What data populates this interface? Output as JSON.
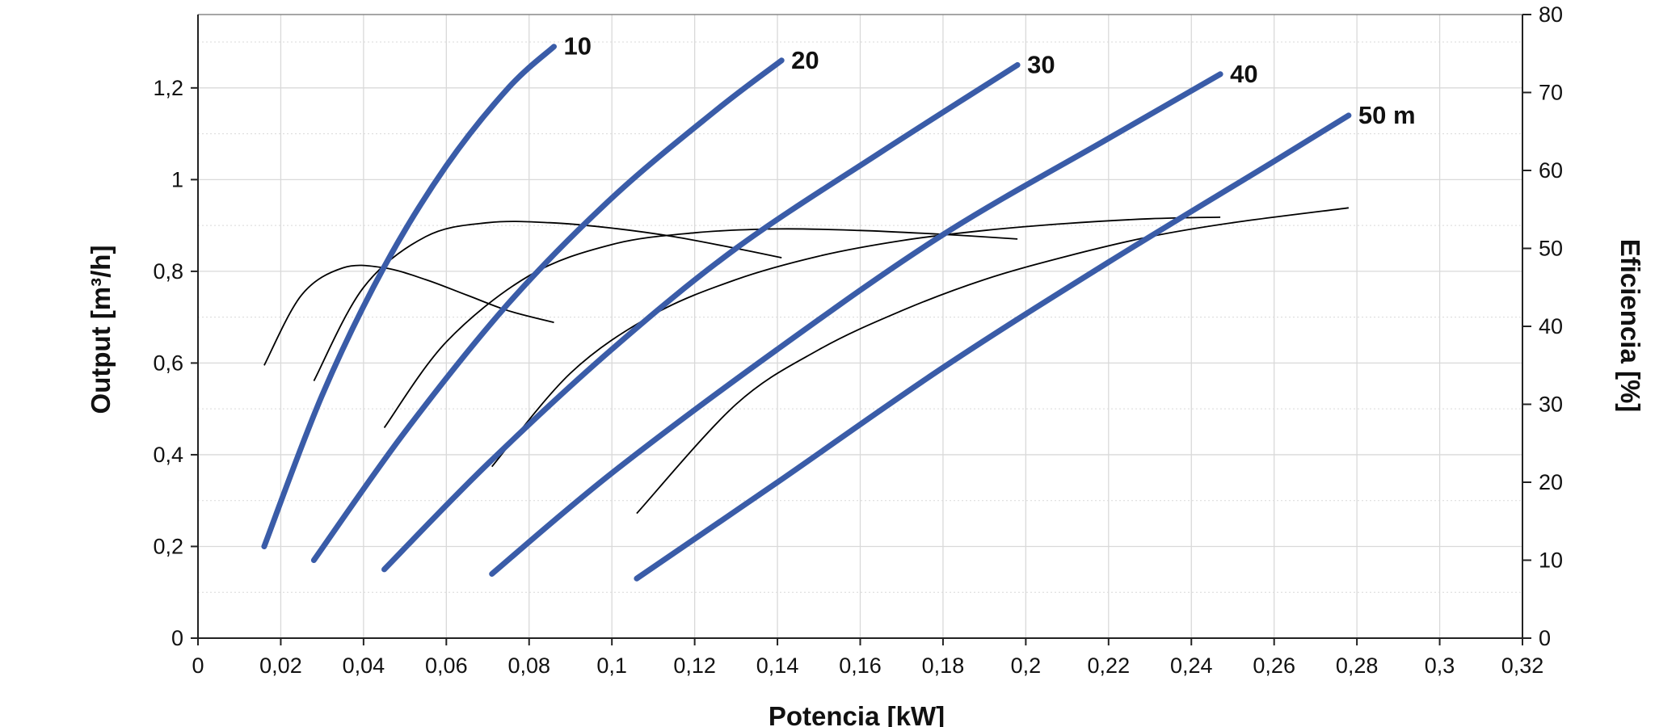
{
  "chart_data": {
    "type": "line",
    "xlabel": "Potencia [kW]",
    "ylabel_left": "Output [m³/h]",
    "ylabel_right": "Eficiencia [%]",
    "xlim": [
      0,
      0.32
    ],
    "ylim_left": [
      0,
      1.36
    ],
    "ylim_right": [
      0,
      80
    ],
    "x_ticks": [
      "0",
      "0,02",
      "0,04",
      "0,06",
      "0,08",
      "0,1",
      "0,12",
      "0,14",
      "0,16",
      "0,18",
      "0,2",
      "0,22",
      "0,24",
      "0,26",
      "0,28",
      "0,3",
      "0,32"
    ],
    "y_left_ticks": [
      "0",
      "0,2",
      "0,4",
      "0,6",
      "0,8",
      "1",
      "1,2"
    ],
    "y_right_ticks": [
      "0",
      "10",
      "20",
      "30",
      "40",
      "50",
      "60",
      "70",
      "80"
    ],
    "grid": true,
    "colors": {
      "output": "#3a5ca8",
      "efficiency": "#000000",
      "grid": "#d9d9d9"
    },
    "output_series": [
      {
        "label": "10",
        "axis": "left",
        "x": [
          0.016,
          0.03,
          0.045,
          0.06,
          0.075,
          0.086
        ],
        "y": [
          0.2,
          0.53,
          0.81,
          1.03,
          1.2,
          1.29
        ]
      },
      {
        "label": "20",
        "axis": "left",
        "x": [
          0.028,
          0.05,
          0.075,
          0.1,
          0.125,
          0.141
        ],
        "y": [
          0.17,
          0.45,
          0.73,
          0.96,
          1.15,
          1.26
        ]
      },
      {
        "label": "30",
        "axis": "left",
        "x": [
          0.045,
          0.07,
          0.1,
          0.13,
          0.165,
          0.198
        ],
        "y": [
          0.15,
          0.38,
          0.63,
          0.85,
          1.06,
          1.25
        ]
      },
      {
        "label": "40",
        "axis": "left",
        "x": [
          0.071,
          0.1,
          0.14,
          0.18,
          0.22,
          0.247
        ],
        "y": [
          0.14,
          0.36,
          0.63,
          0.88,
          1.09,
          1.23
        ]
      },
      {
        "label": "50 m",
        "axis": "left",
        "x": [
          0.106,
          0.14,
          0.18,
          0.22,
          0.26,
          0.278
        ],
        "y": [
          0.13,
          0.34,
          0.59,
          0.82,
          1.04,
          1.14
        ]
      }
    ],
    "efficiency_series": [
      {
        "axis": "right",
        "x": [
          0.016,
          0.025,
          0.035,
          0.045,
          0.055,
          0.065,
          0.075,
          0.086
        ],
        "y": [
          35,
          44,
          47.5,
          47.5,
          46,
          44,
          42,
          40.5
        ]
      },
      {
        "axis": "right",
        "x": [
          0.028,
          0.04,
          0.055,
          0.07,
          0.085,
          0.1,
          0.115,
          0.13,
          0.141
        ],
        "y": [
          33,
          45,
          51.5,
          53.3,
          53.3,
          52.6,
          51.5,
          50,
          48.8
        ]
      },
      {
        "axis": "right",
        "x": [
          0.045,
          0.06,
          0.08,
          0.1,
          0.12,
          0.14,
          0.16,
          0.18,
          0.198
        ],
        "y": [
          27,
          38,
          46.5,
          50.5,
          52,
          52.5,
          52.3,
          51.8,
          51.2
        ]
      },
      {
        "axis": "right",
        "x": [
          0.071,
          0.09,
          0.11,
          0.13,
          0.15,
          0.17,
          0.19,
          0.21,
          0.23,
          0.247
        ],
        "y": [
          22,
          34,
          41.5,
          46,
          49,
          51,
          52.3,
          53.2,
          53.8,
          54
        ]
      },
      {
        "axis": "right",
        "x": [
          0.106,
          0.13,
          0.15,
          0.17,
          0.19,
          0.21,
          0.23,
          0.25,
          0.278
        ],
        "y": [
          16,
          30,
          37,
          42,
          46,
          49,
          51.5,
          53.3,
          55.2
        ]
      }
    ]
  }
}
